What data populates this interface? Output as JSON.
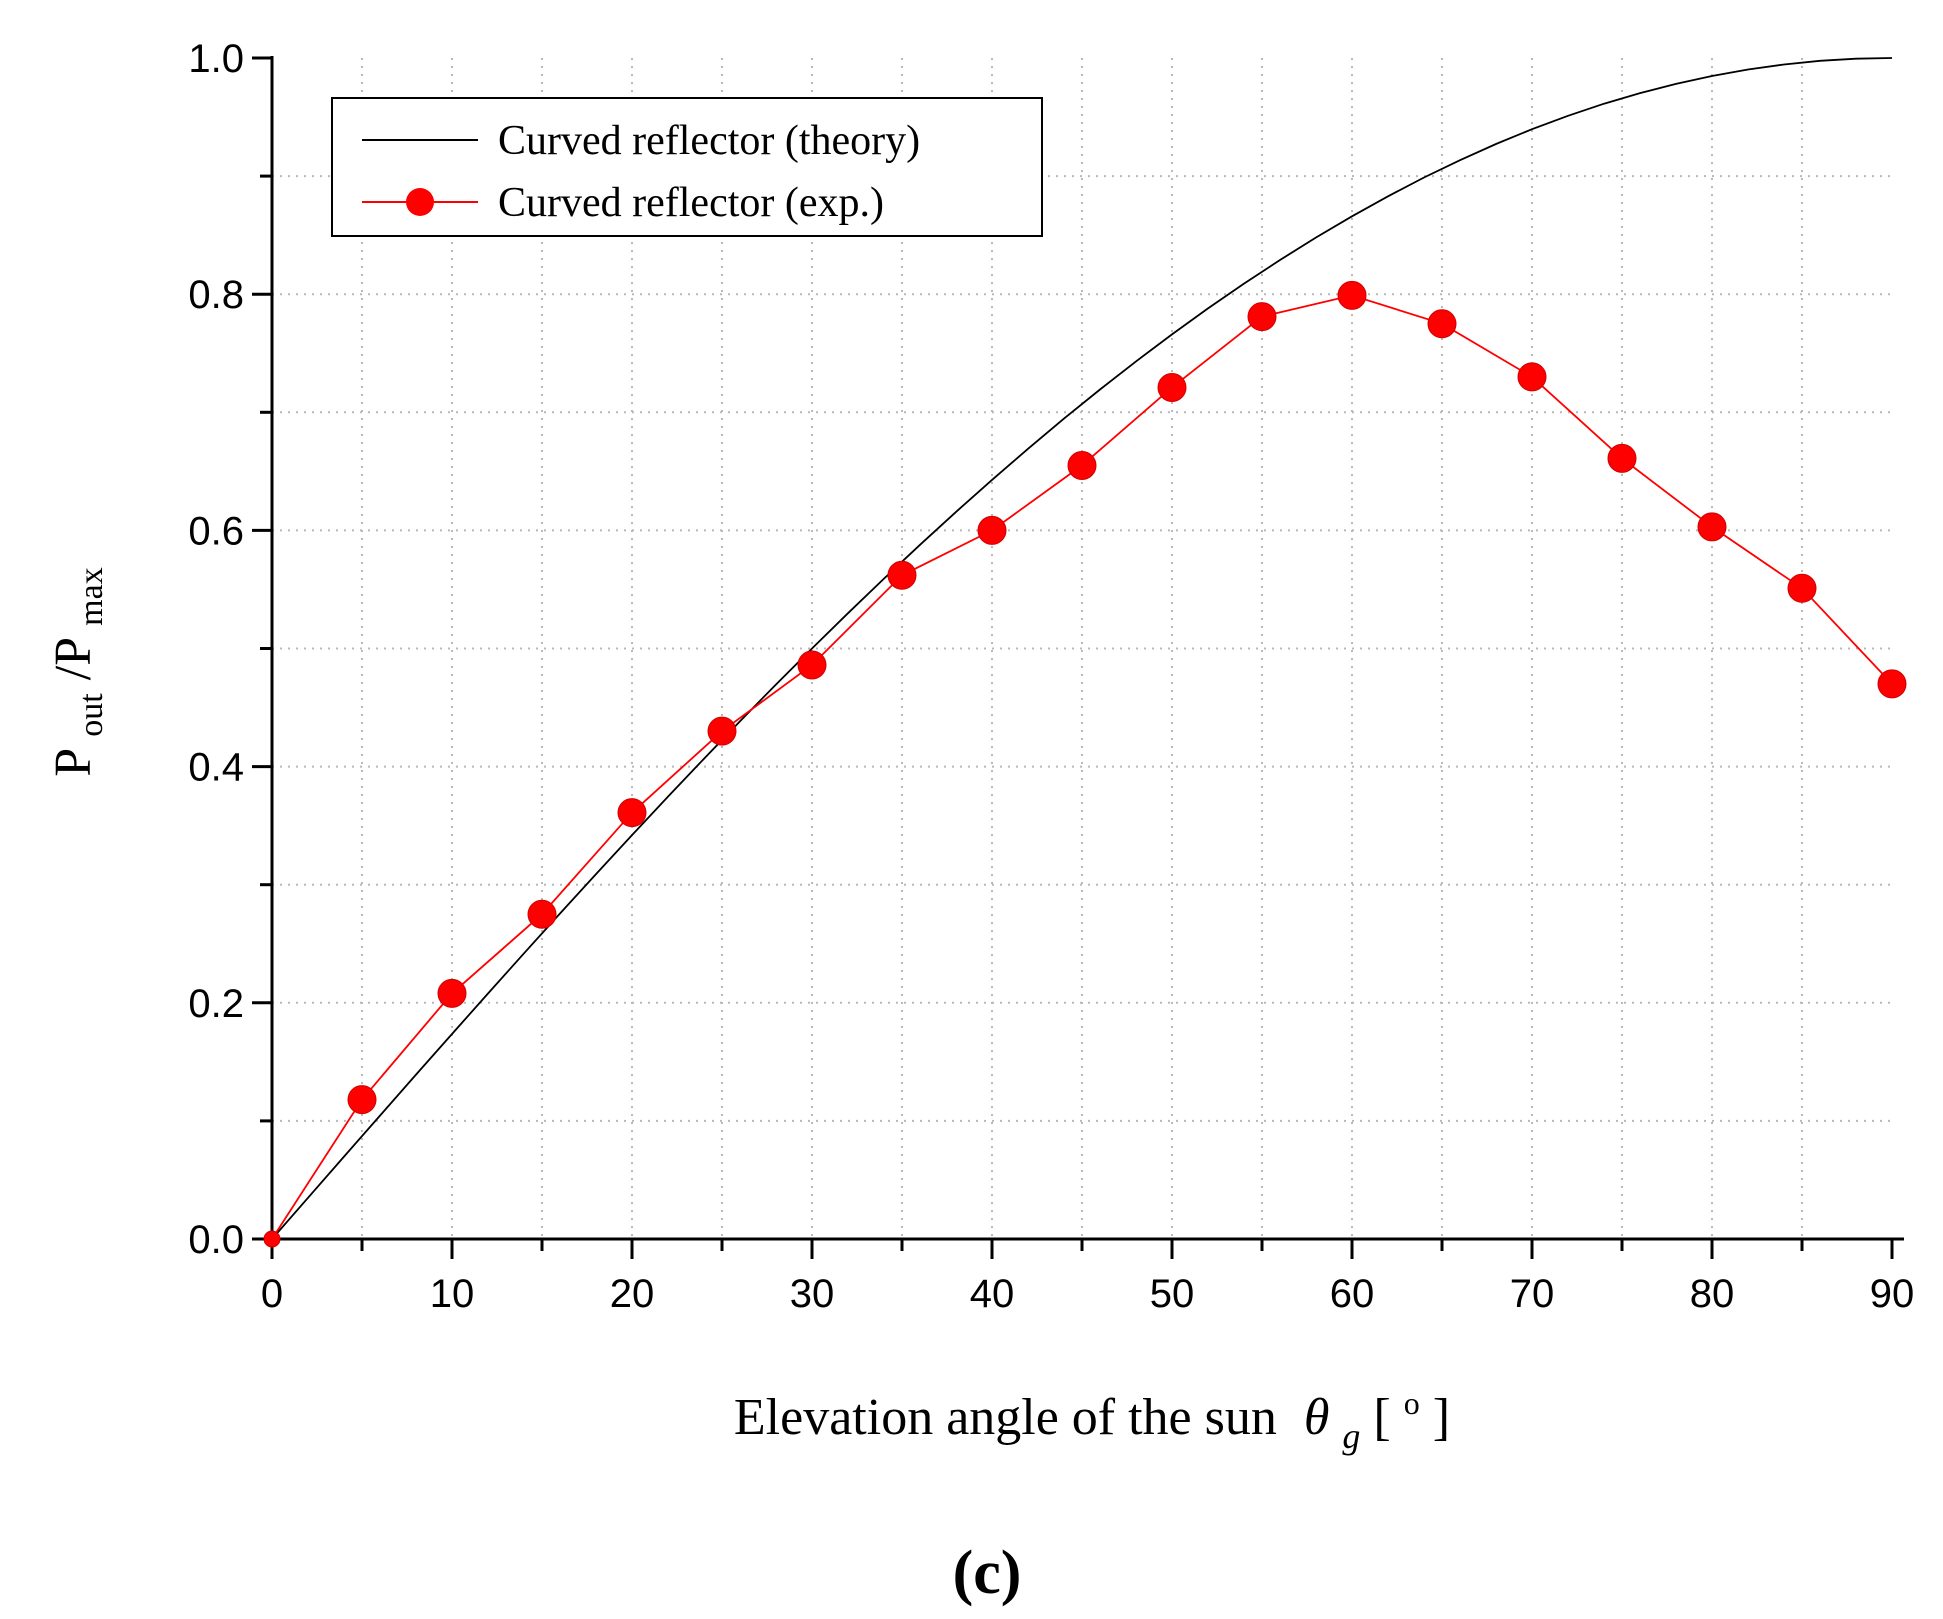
{
  "chart_data": {
    "type": "line",
    "title": "",
    "xlabel": "Elevation angle of the sun",
    "xlabel_symbol": "θ",
    "xlabel_subscript": "g",
    "xlabel_unit_open": "[",
    "xlabel_unit_sup": "o",
    "xlabel_unit_close": "]",
    "ylabel_main": "P",
    "ylabel_sub1": "out",
    "ylabel_slash": "/P",
    "ylabel_sub2": "max",
    "xlim": [
      0,
      90
    ],
    "ylim": [
      0,
      1.0
    ],
    "xticks": [
      "0",
      "10",
      "20",
      "30",
      "40",
      "50",
      "60",
      "70",
      "80",
      "90"
    ],
    "yticks": [
      "0.0",
      "0.2",
      "0.4",
      "0.6",
      "0.8",
      "1.0"
    ],
    "grid": true,
    "legend_position": "top-left",
    "series": [
      {
        "name": "Curved reflector (theory)",
        "style": "line",
        "color": "#000000",
        "x": [
          0,
          2,
          4,
          6,
          8,
          10,
          12,
          14,
          16,
          18,
          20,
          22,
          24,
          26,
          28,
          30,
          32,
          34,
          36,
          38,
          40,
          42,
          44,
          46,
          48,
          50,
          52,
          54,
          56,
          58,
          60,
          62,
          64,
          66,
          68,
          70,
          72,
          74,
          76,
          78,
          80,
          82,
          84,
          86,
          88,
          90
        ],
        "y": [
          0,
          0.0349,
          0.0698,
          0.1045,
          0.1392,
          0.1736,
          0.2079,
          0.2419,
          0.2756,
          0.309,
          0.342,
          0.3746,
          0.4067,
          0.4384,
          0.4695,
          0.5,
          0.5299,
          0.5592,
          0.5878,
          0.6157,
          0.6428,
          0.6691,
          0.6947,
          0.7193,
          0.7431,
          0.766,
          0.788,
          0.809,
          0.829,
          0.848,
          0.866,
          0.8829,
          0.8988,
          0.9135,
          0.9272,
          0.9397,
          0.9511,
          0.9613,
          0.9703,
          0.9781,
          0.9848,
          0.9903,
          0.9945,
          0.9976,
          0.9994,
          1.0
        ]
      },
      {
        "name": "Curved reflector (exp.)",
        "style": "line+marker",
        "color": "#ff0000",
        "x": [
          0,
          5,
          10,
          15,
          20,
          25,
          30,
          35,
          40,
          45,
          50,
          55,
          60,
          65,
          70,
          75,
          80,
          85,
          90
        ],
        "y": [
          0,
          0.118,
          0.208,
          0.275,
          0.361,
          0.43,
          0.486,
          0.562,
          0.6,
          0.655,
          0.721,
          0.781,
          0.799,
          0.775,
          0.73,
          0.661,
          0.603,
          0.551,
          0.47
        ]
      }
    ]
  },
  "caption": "(c)"
}
